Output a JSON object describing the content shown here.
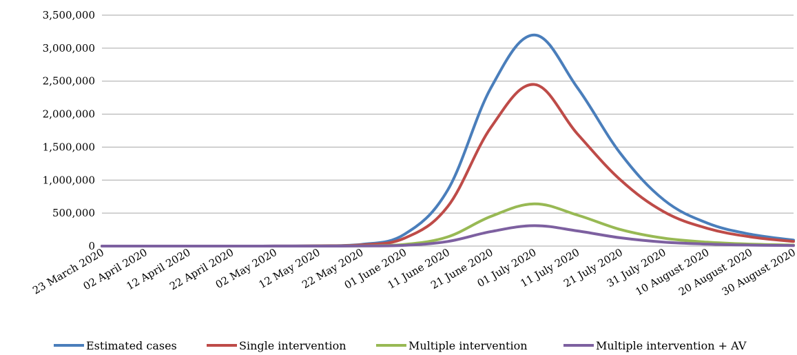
{
  "chart_data": {
    "type": "line",
    "title": "",
    "xlabel": "",
    "ylabel": "",
    "ylim": [
      0,
      3500000
    ],
    "yticks": [
      "0",
      "500,000",
      "1,000,000",
      "1,500,000",
      "2,000,000",
      "2,500,000",
      "3,000,000",
      "3,500,000"
    ],
    "ytick_values": [
      0,
      500000,
      1000000,
      1500000,
      2000000,
      2500000,
      3000000,
      3500000
    ],
    "grid": "horizontal",
    "legend_position": "bottom",
    "categories": [
      "23 March 2020",
      "02 April 2020",
      "12 April 2020",
      "22 April 2020",
      "02 May 2020",
      "12 May 2020",
      "22 May 2020",
      "01 June 2020",
      "11 June 2020",
      "21 June 2020",
      "01 July 2020",
      "11 July 2020",
      "21 July 2020",
      "31 July 2020",
      "10 August 2020",
      "20 August 2020",
      "30 August 2020"
    ],
    "series": [
      {
        "name": "Estimated cases",
        "color": "#4a7ebb",
        "values": [
          0,
          0,
          0,
          0,
          1000,
          5000,
          25000,
          180000,
          850000,
          2400000,
          3200000,
          2400000,
          1400000,
          700000,
          350000,
          180000,
          90000
        ]
      },
      {
        "name": "Single intervention",
        "color": "#be4b48",
        "values": [
          0,
          0,
          0,
          0,
          800,
          4000,
          18000,
          120000,
          600000,
          1800000,
          2450000,
          1700000,
          1000000,
          520000,
          270000,
          140000,
          70000
        ]
      },
      {
        "name": "Multiple intervention",
        "color": "#98b954",
        "values": [
          0,
          0,
          0,
          0,
          200,
          1000,
          4000,
          25000,
          140000,
          450000,
          640000,
          470000,
          250000,
          120000,
          60000,
          30000,
          15000
        ]
      },
      {
        "name": "Multiple intervention + AV",
        "color": "#7d60a0",
        "values": [
          0,
          0,
          0,
          0,
          100,
          500,
          2000,
          12000,
          70000,
          220000,
          310000,
          230000,
          125000,
          60000,
          30000,
          15000,
          8000
        ]
      }
    ]
  }
}
